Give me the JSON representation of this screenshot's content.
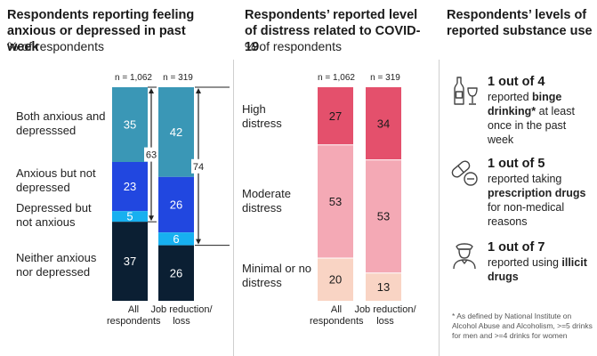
{
  "chart_data": [
    {
      "type": "bar",
      "title": "Respondents reporting feeling anxious or depressed in past week",
      "subtitle": "% of respondents",
      "categories": [
        "All respondents",
        "Job reduction/ loss"
      ],
      "n_labels": [
        "n = 1,062",
        "n = 319"
      ],
      "segments": [
        "Both anxious and depresssed",
        "Anxious but not depressed",
        "Depressed but not anxious",
        "Neither anxious nor depressed"
      ],
      "series": [
        {
          "name": "Both anxious and depresssed",
          "values": [
            35,
            42
          ],
          "color": "#3a97b6"
        },
        {
          "name": "Anxious but not depressed",
          "values": [
            23,
            26
          ],
          "color": "#2147e0"
        },
        {
          "name": "Depressed but not anxious",
          "values": [
            5,
            6
          ],
          "color": "#17b0f0"
        },
        {
          "name": "Neither anxious nor depressed",
          "values": [
            37,
            26
          ],
          "color": "#0b1f33"
        }
      ],
      "totals": [
        63,
        74
      ]
    },
    {
      "type": "bar",
      "title": "Respondents’ reported level of distress related to COVID-19",
      "subtitle": "% of respondents",
      "categories": [
        "All respondents",
        "Job reduction/ loss"
      ],
      "n_labels": [
        "n = 1,062",
        "n = 319"
      ],
      "segments": [
        "High distress",
        "Moderate distress",
        "Minimal or no distress"
      ],
      "series": [
        {
          "name": "High distress",
          "values": [
            27,
            34
          ],
          "color": "#e4506c"
        },
        {
          "name": "Moderate distress",
          "values": [
            53,
            53
          ],
          "color": "#f4a9b5"
        },
        {
          "name": "Minimal or no distress",
          "values": [
            20,
            13
          ],
          "color": "#f9d4c4"
        }
      ]
    }
  ],
  "substance": {
    "title": "Respondents’ levels of reported substance use",
    "items": [
      {
        "icon": "wine-bottle-glass-icon",
        "main": "1 out of 4",
        "pre": "reported ",
        "bold": "binge drinking*",
        "post": " at least once in the past week"
      },
      {
        "icon": "pills-icon",
        "main": "1 out of 5",
        "pre": "reported taking ",
        "bold": "prescription drugs",
        "post": " for non-medical reasons"
      },
      {
        "icon": "police-officer-icon",
        "main": "1 out of 7",
        "pre": "reported using ",
        "bold": "illicit drugs",
        "post": ""
      }
    ],
    "footnote": "* As defined by National Institute on Alcohol Abuse and Alcoholism, >=5 drinks for men and >=4 drinks for women"
  }
}
